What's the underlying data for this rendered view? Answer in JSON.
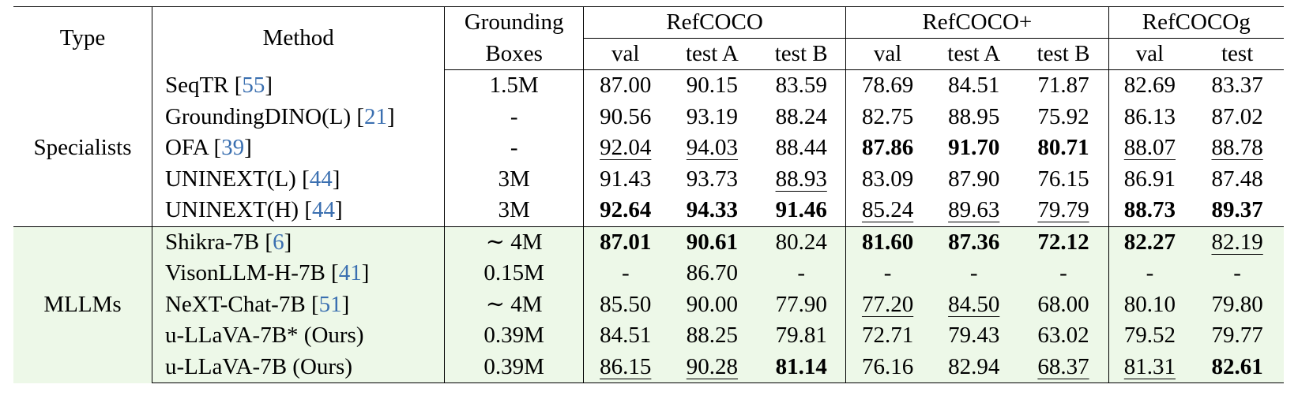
{
  "header": {
    "type": "Type",
    "method": "Method",
    "grounding": [
      "Grounding",
      "Boxes"
    ],
    "groups": [
      "RefCOCO",
      "RefCOCO+",
      "RefCOCOg"
    ],
    "subcols": [
      "val",
      "test A",
      "test B",
      "val",
      "test A",
      "test B",
      "val",
      "test"
    ]
  },
  "colors": {
    "mllm_bg": "#edf8e8",
    "citation": "#3a6fb0"
  },
  "groups": [
    {
      "name": "Specialists",
      "rows": [
        {
          "method": "SeqTR",
          "cite": "55",
          "boxes": "1.5M",
          "values": [
            "87.00",
            "90.15",
            "83.59",
            "78.69",
            "84.51",
            "71.87",
            "82.69",
            "83.37"
          ],
          "styles": [
            "",
            "",
            "",
            "",
            "",
            "",
            "",
            ""
          ]
        },
        {
          "method": "GroundingDINO(L)",
          "cite": "21",
          "boxes": "-",
          "values": [
            "90.56",
            "93.19",
            "88.24",
            "82.75",
            "88.95",
            "75.92",
            "86.13",
            "87.02"
          ],
          "styles": [
            "",
            "",
            "",
            "",
            "",
            "",
            "",
            ""
          ]
        },
        {
          "method": "OFA",
          "cite": "39",
          "boxes": "-",
          "values": [
            "92.04",
            "94.03",
            "88.44",
            "87.86",
            "91.70",
            "80.71",
            "88.07",
            "88.78"
          ],
          "styles": [
            "u",
            "u",
            "",
            "b",
            "b",
            "b",
            "u",
            "u"
          ]
        },
        {
          "method": "UNINEXT(L)",
          "cite": "44",
          "boxes": "3M",
          "values": [
            "91.43",
            "93.73",
            "88.93",
            "83.09",
            "87.90",
            "76.15",
            "86.91",
            "87.48"
          ],
          "styles": [
            "",
            "",
            "u",
            "",
            "",
            "",
            "",
            ""
          ]
        },
        {
          "method": "UNINEXT(H)",
          "cite": "44",
          "boxes": "3M",
          "values": [
            "92.64",
            "94.33",
            "91.46",
            "85.24",
            "89.63",
            "79.79",
            "88.73",
            "89.37"
          ],
          "styles": [
            "b",
            "b",
            "b",
            "u",
            "u",
            "u",
            "b",
            "b"
          ]
        }
      ]
    },
    {
      "name": "MLLMs",
      "rows": [
        {
          "method": "Shikra-7B",
          "cite": "6",
          "boxes": "∼ 4M",
          "values": [
            "87.01",
            "90.61",
            "80.24",
            "81.60",
            "87.36",
            "72.12",
            "82.27",
            "82.19"
          ],
          "styles": [
            "b",
            "b",
            "",
            "b",
            "b",
            "b",
            "b",
            "u"
          ]
        },
        {
          "method": "VisonLLM-H-7B",
          "cite": "41",
          "boxes": "0.15M",
          "values": [
            "-",
            "86.70",
            "-",
            "-",
            "-",
            "-",
            "-",
            "-"
          ],
          "styles": [
            "",
            "",
            "",
            "",
            "",
            "",
            "",
            ""
          ]
        },
        {
          "method": "NeXT-Chat-7B",
          "cite": "51",
          "boxes": "∼ 4M",
          "values": [
            "85.50",
            "90.00",
            "77.90",
            "77.20",
            "84.50",
            "68.00",
            "80.10",
            "79.80"
          ],
          "styles": [
            "",
            "",
            "",
            "u",
            "u",
            "",
            "",
            ""
          ]
        },
        {
          "method": "u-LLaVA-7B* (Ours)",
          "cite": "",
          "boxes": "0.39M",
          "values": [
            "84.51",
            "88.25",
            "79.81",
            "72.71",
            "79.43",
            "63.02",
            "79.52",
            "79.77"
          ],
          "styles": [
            "",
            "",
            "",
            "",
            "",
            "",
            "",
            ""
          ]
        },
        {
          "method": "u-LLaVA-7B (Ours)",
          "cite": "",
          "boxes": "0.39M",
          "values": [
            "86.15",
            "90.28",
            "81.14",
            "76.16",
            "82.94",
            "68.37",
            "81.31",
            "82.61"
          ],
          "styles": [
            "u",
            "u",
            "b",
            "",
            "",
            "u",
            "u",
            "b"
          ]
        }
      ]
    }
  ]
}
